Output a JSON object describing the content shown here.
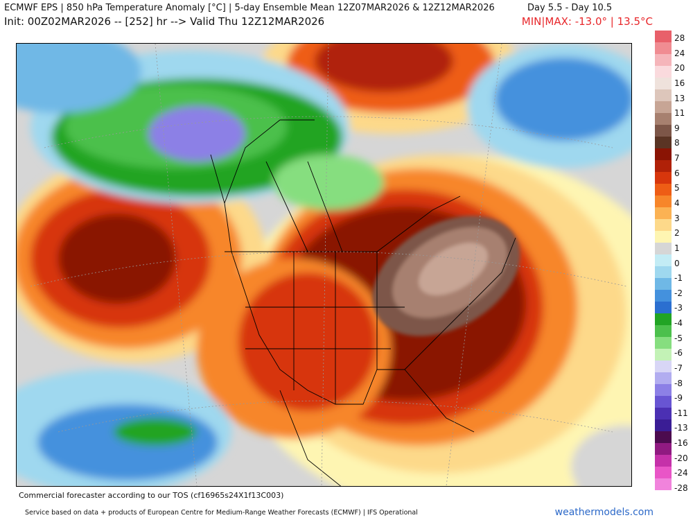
{
  "header": {
    "line1": "ECMWF EPS | 850 hPa Temperature Anomaly [°C] | 5-day Ensemble Mean 12Z07MAR2026 & 12Z12MAR2026",
    "days": "Day 5.5 - Day 10.5",
    "line2": "Init: 00Z02MAR2026 -- [252] hr --> Valid Thu 12Z12MAR2026",
    "minmax": "MIN|MAX: -13.0° | 13.5°C"
  },
  "legend": {
    "labels": [
      "28",
      "24",
      "20",
      "16",
      "13",
      "11",
      "9",
      "8",
      "7",
      "6",
      "5",
      "4",
      "3",
      "2",
      "1",
      "0",
      "-1",
      "-2",
      "-3",
      "-4",
      "-5",
      "-6",
      "-7",
      "-8",
      "-9",
      "-11",
      "-13",
      "-16",
      "-20",
      "-24",
      "-28"
    ],
    "colors": [
      "#e8606a",
      "#f08c92",
      "#f5b5ba",
      "#fadadd",
      "#efe2dc",
      "#ddc6bb",
      "#c7a595",
      "#a7806f",
      "#7d5648",
      "#5a3424",
      "#8a1404",
      "#b02108",
      "#d7360c",
      "#ee5d15",
      "#f7862a",
      "#fbb253",
      "#fdd98a",
      "#fef5b2",
      "#d6d6d6",
      "#c3ecf5",
      "#9fd8ef",
      "#6fb8e6",
      "#4491dd",
      "#2b6fd0",
      "#21a424",
      "#4cc04c",
      "#86de7f",
      "#c3f2b6",
      "#d8d6f6",
      "#b2adf0",
      "#8c80e6",
      "#6855d3",
      "#4b30b3",
      "#3a1d95",
      "#4c0b4f",
      "#901a81",
      "#c531a9",
      "#e955c7",
      "#f183dc"
    ]
  },
  "map": {
    "description_icon": "north-america-temperature-anomaly-map"
  },
  "footer": {
    "line1": "Commercial forecaster according to our TOS (cf16965s24X1f13C003)",
    "line2": "Service based on data + products of European Centre for Medium-Range Weather Forecasts (ECMWF) | IFS Operational",
    "brand": "weathermodels.com"
  }
}
